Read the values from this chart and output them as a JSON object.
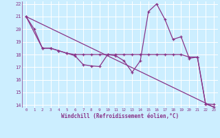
{
  "xlabel": "Windchill (Refroidissement éolien,°C)",
  "background_color": "#cceeff",
  "grid_color": "#ffffff",
  "line_color": "#883388",
  "xlim": [
    -0.5,
    23.5
  ],
  "ylim": [
    13.8,
    22.2
  ],
  "yticks": [
    14,
    15,
    16,
    17,
    18,
    19,
    20,
    21,
    22
  ],
  "xticks": [
    0,
    1,
    2,
    3,
    4,
    5,
    6,
    7,
    8,
    9,
    10,
    11,
    12,
    13,
    14,
    15,
    16,
    17,
    18,
    19,
    20,
    21,
    22,
    23
  ],
  "series1_x": [
    0,
    1,
    2,
    3,
    4,
    5,
    6,
    7,
    8,
    9,
    10,
    11,
    12,
    13,
    14,
    15,
    16,
    17,
    18,
    19,
    20,
    21,
    22,
    23
  ],
  "series1_y": [
    21,
    20,
    18.5,
    18.5,
    18.3,
    18.1,
    17.9,
    17.2,
    17.1,
    17.05,
    18.0,
    17.9,
    17.5,
    16.6,
    17.5,
    21.4,
    22.0,
    20.8,
    19.2,
    19.4,
    17.7,
    17.8,
    14.1,
    14.05
  ],
  "series2_x": [
    0,
    2,
    3,
    4,
    5,
    6,
    7,
    8,
    9,
    10,
    11,
    12,
    13,
    14,
    15,
    16,
    17,
    18,
    19,
    20,
    21,
    22,
    23
  ],
  "series2_y": [
    21,
    18.5,
    18.5,
    18.3,
    18.1,
    18.0,
    18.0,
    18.0,
    18.0,
    18.0,
    18.0,
    18.0,
    18.0,
    18.0,
    18.0,
    18.0,
    18.0,
    18.0,
    18.0,
    17.8,
    17.8,
    14.1,
    13.85
  ],
  "series3_x": [
    0,
    23
  ],
  "series3_y": [
    21,
    13.85
  ]
}
